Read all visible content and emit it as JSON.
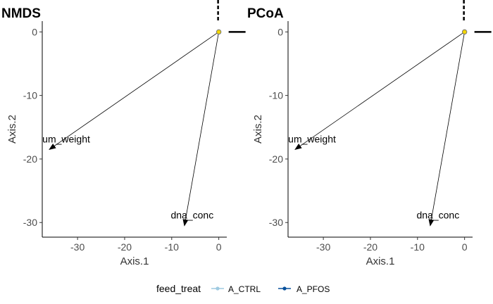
{
  "chart_data": [
    {
      "type": "scatter",
      "title": "NMDS",
      "xlabel": "Axis.1",
      "ylabel": "Axis.2",
      "xlim": [
        -37.5,
        1.7
      ],
      "ylim": [
        -32.3,
        1.7
      ],
      "xticks": [
        -30,
        -20,
        -10,
        0
      ],
      "yticks": [
        0,
        -10,
        -20,
        -30
      ],
      "grid": false,
      "series": [
        {
          "name": "A_CTRL",
          "color": "#9ecae1",
          "x": [
            0,
            0,
            0
          ],
          "y": [
            0,
            0,
            0
          ]
        },
        {
          "name": "A_PFOS",
          "color": "#08519c",
          "x": [
            0,
            0,
            0
          ],
          "y": [
            0,
            0,
            0
          ]
        }
      ],
      "vectors": [
        {
          "label": "um_weight",
          "x": -36,
          "y": -18.5
        },
        {
          "label": "dna_conc",
          "x": -7.3,
          "y": -30.5
        }
      ]
    },
    {
      "type": "scatter",
      "title": "PCoA",
      "xlabel": "Axis.1",
      "ylabel": "Axis.2",
      "xlim": [
        -37.5,
        1.7
      ],
      "ylim": [
        -32.3,
        1.7
      ],
      "xticks": [
        -30,
        -20,
        -10,
        0
      ],
      "yticks": [
        0,
        -10,
        -20,
        -30
      ],
      "grid": false,
      "series": [
        {
          "name": "A_CTRL",
          "color": "#9ecae1",
          "x": [
            0,
            0,
            0
          ],
          "y": [
            0,
            0,
            0
          ]
        },
        {
          "name": "A_PFOS",
          "color": "#08519c",
          "x": [
            0,
            0,
            0
          ],
          "y": [
            0,
            0,
            0
          ]
        }
      ],
      "vectors": [
        {
          "label": "um_weight",
          "x": -36,
          "y": -18.5
        },
        {
          "label": "dna_conc",
          "x": -7.3,
          "y": -30.5
        }
      ]
    }
  ],
  "legend": {
    "title": "feed_treat",
    "position": "bottom",
    "items": [
      {
        "label": "A_CTRL",
        "color": "#9ecae1"
      },
      {
        "label": "A_PFOS",
        "color": "#08519c"
      }
    ]
  },
  "colors": {
    "centroid_fill": "#f2d500",
    "centroid_stroke": "#7a7a7a",
    "axis": "#000000"
  }
}
